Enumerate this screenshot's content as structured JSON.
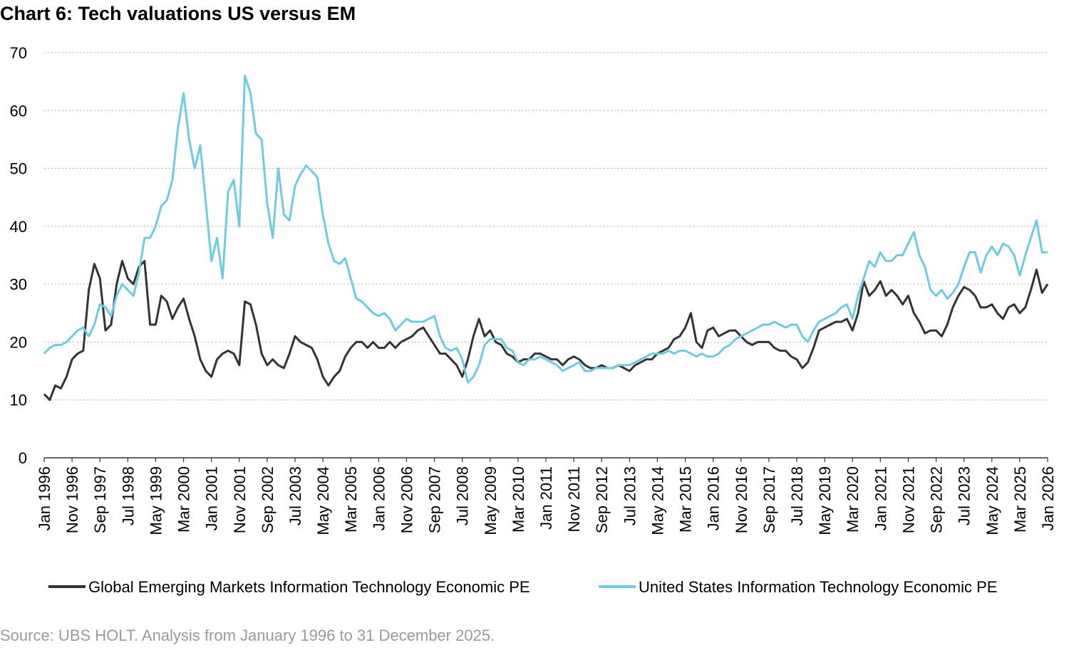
{
  "chart_data": {
    "type": "line",
    "title": "Chart 6: Tech valuations US versus EM",
    "source": "Source: UBS HOLT. Analysis from January 1996 to 31 December 2025.",
    "categories": [
      "Jan 1996",
      null,
      null,
      null,
      null,
      "Nov 1996",
      null,
      null,
      null,
      null,
      "Sep 1997",
      null,
      null,
      null,
      null,
      "Jul 1998",
      null,
      null,
      null,
      null,
      "May 1999",
      null,
      null,
      null,
      null,
      "Mar 2000",
      null,
      null,
      null,
      null,
      "Jan 2001",
      null,
      null,
      null,
      null,
      "Nov 2001",
      null,
      null,
      null,
      null,
      "Sep 2002",
      null,
      null,
      null,
      null,
      "Jul 2003",
      null,
      null,
      null,
      null,
      "May 2004",
      null,
      null,
      null,
      null,
      "Mar 2005",
      null,
      null,
      null,
      null,
      "Jan 2006",
      null,
      null,
      null,
      null,
      "Nov 2006",
      null,
      null,
      null,
      null,
      "Sep 2007",
      null,
      null,
      null,
      null,
      "Jul 2008",
      null,
      null,
      null,
      null,
      "May 2009",
      null,
      null,
      null,
      null,
      "Mar 2010",
      null,
      null,
      null,
      null,
      "Jan 2011",
      null,
      null,
      null,
      null,
      "Nov 2011",
      null,
      null,
      null,
      null,
      "Sep 2012",
      null,
      null,
      null,
      null,
      "Jul 2013",
      null,
      null,
      null,
      null,
      "May 2014",
      null,
      null,
      null,
      null,
      "Mar 2015",
      null,
      null,
      null,
      null,
      "Jan 2016",
      null,
      null,
      null,
      null,
      "Nov 2016",
      null,
      null,
      null,
      null,
      "Sep 2017",
      null,
      null,
      null,
      null,
      "Jul 2018",
      null,
      null,
      null,
      null,
      "May 2019",
      null,
      null,
      null,
      null,
      "Mar 2020",
      null,
      null,
      null,
      null,
      "Jan 2021",
      null,
      null,
      null,
      null,
      "Nov 2021",
      null,
      null,
      null,
      null,
      "Sep 2022",
      null,
      null,
      null,
      null,
      "Jul 2023",
      null,
      null,
      null,
      null,
      "May 2024",
      null,
      null,
      null,
      null,
      "Mar 2025",
      null,
      null,
      null,
      null,
      "Jan 2026"
    ],
    "series": [
      {
        "name": "Global Emerging Markets Information Technology Economic PE",
        "color": "#333333",
        "values": [
          11,
          10,
          12.5,
          12,
          14,
          17,
          18,
          18.5,
          29,
          33.5,
          31,
          22,
          23,
          30,
          34,
          31,
          30,
          33,
          34,
          23,
          23,
          28,
          27,
          24,
          26,
          27.5,
          24,
          21,
          17,
          15,
          14,
          17,
          18,
          18.5,
          18,
          16,
          27,
          26.5,
          23,
          18,
          16,
          17,
          16,
          15.5,
          18,
          21,
          20,
          19.5,
          19,
          17,
          14,
          12.5,
          14,
          15,
          17.5,
          19,
          20,
          20,
          19,
          20,
          19,
          19,
          20,
          19,
          20,
          20.5,
          21,
          22,
          22.5,
          21,
          19.5,
          18,
          18,
          17,
          16,
          14,
          17,
          21,
          24,
          21,
          22,
          20,
          19.5,
          18,
          17.5,
          16.5,
          17,
          17,
          18,
          18,
          17.5,
          17,
          17,
          16,
          17,
          17.5,
          17,
          16,
          15.5,
          15.5,
          16,
          15.5,
          15.5,
          16,
          15.5,
          15,
          16,
          16.5,
          17,
          17,
          18,
          18.5,
          19,
          20.5,
          21,
          22.5,
          25,
          20,
          19,
          22,
          22.5,
          21,
          21.5,
          22,
          22,
          21,
          20,
          19.5,
          20,
          20,
          20,
          19,
          18.5,
          18.5,
          17.5,
          17,
          15.5,
          16.5,
          19,
          22,
          22.5,
          23,
          23.5,
          23.5,
          24,
          22,
          25,
          30.5,
          28,
          29,
          30.5,
          28,
          29,
          28,
          26.5,
          28,
          25,
          23.5,
          21.5,
          22,
          22,
          21,
          23,
          26,
          28,
          29.5,
          29,
          28,
          26,
          26,
          26.5,
          25,
          24,
          26,
          26.5,
          25,
          26,
          29,
          32.5,
          28.5,
          30
        ]
      },
      {
        "name": "United States Information Technology Economic PE",
        "color": "#6ecbe0",
        "values": [
          18,
          19,
          19.5,
          19.5,
          20,
          21,
          22,
          22.5,
          21,
          23,
          26.5,
          26,
          24.5,
          28,
          30,
          29,
          28,
          32,
          38,
          38,
          40,
          43.5,
          44.5,
          48,
          57,
          63,
          55,
          50,
          54,
          44,
          34,
          38,
          31,
          46,
          48,
          40,
          66,
          63,
          56,
          55,
          44,
          38,
          50,
          42,
          41,
          47,
          49,
          50.5,
          49.5,
          48.5,
          42,
          37,
          34,
          33.5,
          34.5,
          31,
          27.5,
          27,
          26,
          25,
          24.5,
          25,
          24,
          22,
          23,
          24,
          23.5,
          23.5,
          23.5,
          24,
          24.5,
          21,
          19,
          18.5,
          19,
          17,
          13,
          14,
          16,
          19.5,
          20.5,
          20.5,
          20.5,
          19,
          18.5,
          16.5,
          16,
          17,
          17,
          17.5,
          17,
          16.5,
          16,
          15,
          15.5,
          16,
          16.5,
          15,
          15,
          15.5,
          15.5,
          15.5,
          15.5,
          16,
          16,
          16,
          16.5,
          17,
          17.5,
          18,
          18,
          18,
          18.5,
          18,
          18.5,
          18.5,
          18,
          17.5,
          18,
          17.5,
          17.5,
          18,
          19,
          19.5,
          20.5,
          21,
          21.5,
          22,
          22.5,
          23,
          23,
          23.5,
          23,
          22.5,
          23,
          23,
          21,
          20,
          22,
          23.5,
          24,
          24.5,
          25,
          26,
          26.5,
          24,
          28,
          31,
          34,
          33,
          35.5,
          34,
          34,
          35,
          35,
          37,
          39,
          35,
          33,
          29,
          28,
          29,
          27.5,
          28.5,
          30,
          33,
          35.5,
          35.5,
          32,
          35,
          36.5,
          35,
          37,
          36.5,
          35,
          31.5,
          35,
          38,
          41,
          35.5,
          35.5
        ]
      }
    ],
    "ylim": [
      0,
      70
    ],
    "yticks": [
      0,
      10,
      20,
      30,
      40,
      50,
      60,
      70
    ],
    "grid": true,
    "legend": "bottom"
  }
}
